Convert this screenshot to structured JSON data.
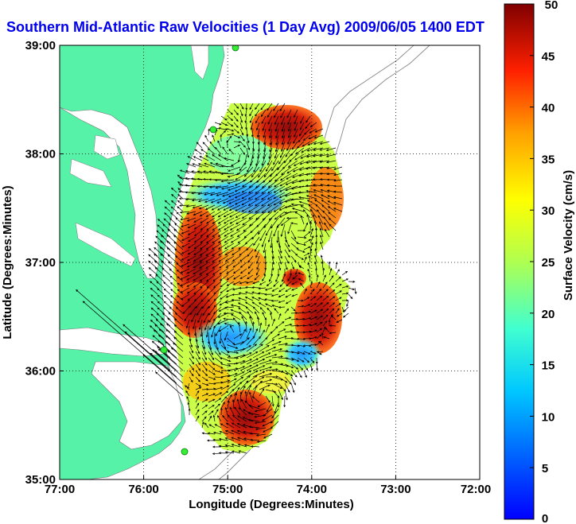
{
  "title": "Southern Mid-Atlantic Raw Velocities (1 Day Avg) 2009/06/05 1400 EDT",
  "xlabel": "Longitude (Degrees:Minutes)",
  "ylabel": "Latitude (Degrees:Minutes)",
  "colorbar_label": "Surface Velocity (cm/s)",
  "x_ticks": [
    "77:00",
    "76:00",
    "75:00",
    "74:00",
    "73:00",
    "72:00"
  ],
  "y_ticks": [
    "39:00",
    "38:00",
    "37:00",
    "36:00",
    "35:00"
  ],
  "colorbar_ticks": [
    "50",
    "45",
    "40",
    "35",
    "30",
    "25",
    "20",
    "15",
    "10",
    "5",
    "0"
  ],
  "colors": {
    "land": "#55f2a8",
    "ocean": "#ffffff",
    "title": "#0000ee",
    "arrows": "#000000",
    "bathymetry": "#888888"
  },
  "chart_data": {
    "type": "heatmap",
    "title": "Southern Mid-Atlantic Raw Velocities (1 Day Avg) 2009/06/05 1400 EDT",
    "xlabel": "Longitude (Degrees:Minutes)",
    "ylabel": "Latitude (Degrees:Minutes)",
    "xlim": [
      -77,
      -72
    ],
    "ylim": [
      35,
      39
    ],
    "grid": true,
    "colorbar": {
      "label": "Surface Velocity (cm/s)",
      "range": [
        0,
        50
      ],
      "colormap": "jet"
    }
  }
}
